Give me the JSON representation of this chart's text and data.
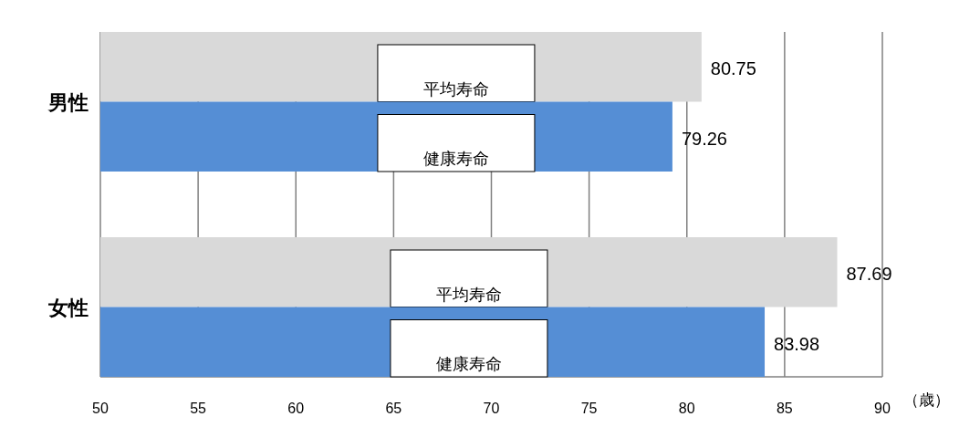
{
  "chart_data": {
    "type": "bar",
    "orientation": "horizontal",
    "categories": [
      "男性",
      "女性"
    ],
    "series": [
      {
        "name": "平均寿命",
        "color": "#d9d9d9",
        "values": [
          80.75,
          87.69
        ]
      },
      {
        "name": "健康寿命",
        "color": "#558ed5",
        "values": [
          79.26,
          83.98
        ]
      }
    ],
    "xlim": [
      50,
      90
    ],
    "xticks": [
      50,
      55,
      60,
      65,
      70,
      75,
      80,
      85,
      90
    ],
    "xlabel": "（歳）",
    "grid": "x",
    "data_labels": true
  }
}
